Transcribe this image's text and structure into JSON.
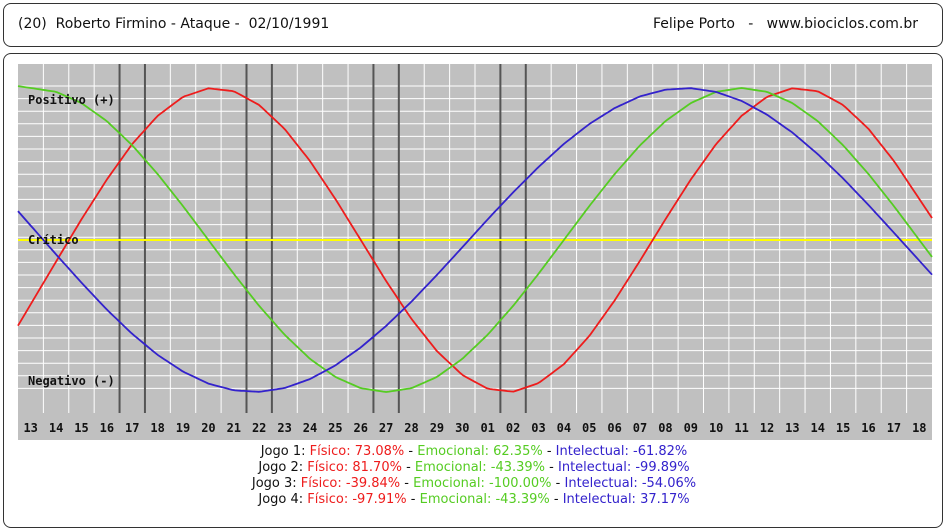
{
  "header": {
    "left": "(20)  Roberto Firmino - Ataque -  02/10/1991",
    "right": "Felipe Porto   -   www.biociclos.com.br"
  },
  "chart_data": {
    "type": "line",
    "x": [
      "13",
      "14",
      "15",
      "16",
      "17",
      "18",
      "19",
      "20",
      "21",
      "22",
      "23",
      "24",
      "25",
      "26",
      "27",
      "28",
      "29",
      "30",
      "01",
      "02",
      "03",
      "04",
      "05",
      "06",
      "07",
      "08",
      "09",
      "10",
      "11",
      "12",
      "13",
      "14",
      "15",
      "16",
      "17",
      "18"
    ],
    "y_labels": {
      "positive": "Positivo (+)",
      "critical": "Crítico",
      "negative": "Negativo (-)"
    },
    "ylim": [
      -100,
      100
    ],
    "grid": true,
    "series": [
      {
        "name": "Físico",
        "color": "#ee1c1c",
        "period_days": 23,
        "values": [
          -42.3,
          -14.2,
          13.6,
          39.8,
          63.2,
          81.7,
          94.2,
          99.8,
          97.9,
          88.8,
          73.1,
          52.0,
          27.0,
          0.0,
          -27.0,
          -52.0,
          -73.1,
          -88.8,
          -97.9,
          -99.8,
          -94.2,
          -81.7,
          -63.2,
          -39.8,
          -13.6,
          13.6,
          39.8,
          63.2,
          81.7,
          94.2,
          99.8,
          97.9,
          88.8,
          73.1,
          52.0,
          27.0
        ]
      },
      {
        "name": "Emocional",
        "color": "#55cc22",
        "period_days": 28,
        "values": [
          100.0,
          97.5,
          90.1,
          78.2,
          62.3,
          43.4,
          22.3,
          0.0,
          -22.3,
          -43.4,
          -62.3,
          -78.2,
          -90.1,
          -97.5,
          -100.0,
          -97.5,
          -90.1,
          -78.2,
          -62.3,
          -43.4,
          -22.3,
          0.0,
          22.3,
          43.4,
          62.3,
          78.2,
          90.1,
          97.5,
          100.0,
          97.5,
          90.1,
          78.2,
          62.3,
          43.4,
          22.3,
          0.0
        ]
      },
      {
        "name": "Intelectual",
        "color": "#3322cc",
        "period_days": 33,
        "values": [
          9.5,
          -9.5,
          -28.1,
          -45.8,
          -61.8,
          -75.6,
          -86.6,
          -94.5,
          -98.9,
          -99.9,
          -97.4,
          -91.5,
          -82.5,
          -70.7,
          -56.5,
          -40.5,
          -23.0,
          -4.8,
          13.6,
          31.3,
          48.0,
          63.2,
          76.3,
          86.8,
          94.5,
          98.9,
          99.9,
          97.4,
          91.5,
          82.5,
          70.7,
          56.5,
          40.5,
          23.0,
          4.8,
          -13.6
        ]
      }
    ],
    "game_markers": [
      {
        "days": [
          "17",
          "18"
        ]
      },
      {
        "days": [
          "22",
          "23"
        ]
      },
      {
        "days": [
          "27",
          "28"
        ]
      },
      {
        "days": [
          "02",
          "03"
        ]
      }
    ]
  },
  "legend": [
    {
      "label": "Jogo 1:",
      "fisico": "Físico: 73.08%",
      "emocional": "Emocional: 62.35%",
      "intelectual": "Intelectual: -61.82%"
    },
    {
      "label": "Jogo 2:",
      "fisico": "Físico: 81.70%",
      "emocional": "Emocional: -43.39%",
      "intelectual": "Intelectual: -99.89%"
    },
    {
      "label": "Jogo 3:",
      "fisico": "Físico: -39.84%",
      "emocional": "Emocional: -100.00%",
      "intelectual": "Intelectual: -54.06%"
    },
    {
      "label": "Jogo 4:",
      "fisico": "Físico: -97.91%",
      "emocional": "Emocional: -43.39%",
      "intelectual": "Intelectual: 37.17%"
    }
  ],
  "legend_separator": " - "
}
